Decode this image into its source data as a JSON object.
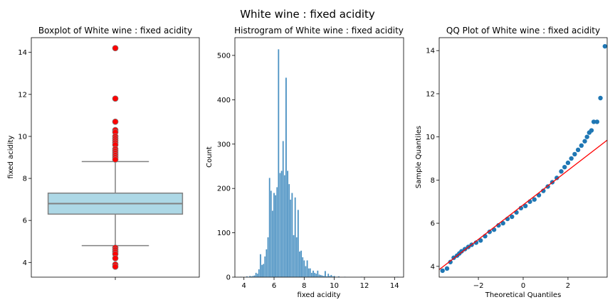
{
  "figure_title": "White wine : fixed acidity",
  "chart_data": [
    {
      "type": "box",
      "title": "Boxplot of White wine : fixed acidity",
      "xlabel": "",
      "ylabel": "fixed acidity",
      "ylim": [
        3.3,
        14.7
      ],
      "yticks": [
        4,
        6,
        8,
        10,
        12,
        14
      ],
      "box": {
        "q1": 6.3,
        "median": 6.8,
        "q3": 7.3,
        "whisker_low": 4.8,
        "whisker_high": 8.8,
        "fill": "#add8e6",
        "edge": "#808080"
      },
      "outliers": [
        14.2,
        11.8,
        10.7,
        10.3,
        10.2,
        10.0,
        9.9,
        9.8,
        9.7,
        9.6,
        9.4,
        9.3,
        9.2,
        9.1,
        9.0,
        8.9,
        4.7,
        4.6,
        4.5,
        4.4,
        4.2,
        3.9,
        3.8
      ],
      "outlier_color": "#ff0000"
    },
    {
      "type": "bar",
      "title": "Histrogram of White wine : fixed acidity",
      "xlabel": "fixed acidity",
      "ylabel": "Count",
      "xlim": [
        3.4,
        14.6
      ],
      "ylim": [
        0,
        540
      ],
      "xticks": [
        4,
        6,
        8,
        10,
        12,
        14
      ],
      "yticks": [
        0,
        100,
        200,
        300,
        400,
        500
      ],
      "bar_color": "#1f77b4",
      "bins": [
        {
          "x": 3.8,
          "v": 1
        },
        {
          "x": 4.2,
          "v": 2
        },
        {
          "x": 4.4,
          "v": 3
        },
        {
          "x": 4.5,
          "v": 2
        },
        {
          "x": 4.6,
          "v": 3
        },
        {
          "x": 4.7,
          "v": 4
        },
        {
          "x": 4.8,
          "v": 10
        },
        {
          "x": 4.9,
          "v": 8
        },
        {
          "x": 5.0,
          "v": 18
        },
        {
          "x": 5.1,
          "v": 52
        },
        {
          "x": 5.2,
          "v": 28
        },
        {
          "x": 5.3,
          "v": 30
        },
        {
          "x": 5.4,
          "v": 47
        },
        {
          "x": 5.5,
          "v": 63
        },
        {
          "x": 5.6,
          "v": 90
        },
        {
          "x": 5.7,
          "v": 224
        },
        {
          "x": 5.8,
          "v": 195
        },
        {
          "x": 5.9,
          "v": 150
        },
        {
          "x": 6.0,
          "v": 190
        },
        {
          "x": 6.1,
          "v": 185
        },
        {
          "x": 6.2,
          "v": 203
        },
        {
          "x": 6.3,
          "v": 514
        },
        {
          "x": 6.4,
          "v": 235
        },
        {
          "x": 6.5,
          "v": 240
        },
        {
          "x": 6.6,
          "v": 307
        },
        {
          "x": 6.7,
          "v": 230
        },
        {
          "x": 6.8,
          "v": 450
        },
        {
          "x": 6.9,
          "v": 240
        },
        {
          "x": 7.0,
          "v": 210
        },
        {
          "x": 7.1,
          "v": 175
        },
        {
          "x": 7.2,
          "v": 190
        },
        {
          "x": 7.3,
          "v": 95
        },
        {
          "x": 7.4,
          "v": 180
        },
        {
          "x": 7.5,
          "v": 90
        },
        {
          "x": 7.6,
          "v": 152
        },
        {
          "x": 7.7,
          "v": 58
        },
        {
          "x": 7.8,
          "v": 60
        },
        {
          "x": 7.9,
          "v": 45
        },
        {
          "x": 8.0,
          "v": 38
        },
        {
          "x": 8.1,
          "v": 25
        },
        {
          "x": 8.2,
          "v": 38
        },
        {
          "x": 8.3,
          "v": 20
        },
        {
          "x": 8.4,
          "v": 20
        },
        {
          "x": 8.5,
          "v": 10
        },
        {
          "x": 8.6,
          "v": 15
        },
        {
          "x": 8.7,
          "v": 10
        },
        {
          "x": 8.8,
          "v": 8
        },
        {
          "x": 8.9,
          "v": 15
        },
        {
          "x": 9.0,
          "v": 6
        },
        {
          "x": 9.1,
          "v": 5
        },
        {
          "x": 9.2,
          "v": 4
        },
        {
          "x": 9.3,
          "v": 3
        },
        {
          "x": 9.4,
          "v": 14
        },
        {
          "x": 9.5,
          "v": 2
        },
        {
          "x": 9.6,
          "v": 8
        },
        {
          "x": 9.7,
          "v": 3
        },
        {
          "x": 9.8,
          "v": 5
        },
        {
          "x": 9.9,
          "v": 2
        },
        {
          "x": 10.0,
          "v": 3
        },
        {
          "x": 10.2,
          "v": 1
        },
        {
          "x": 10.3,
          "v": 2
        },
        {
          "x": 10.7,
          "v": 1
        },
        {
          "x": 11.8,
          "v": 1
        },
        {
          "x": 14.2,
          "v": 1
        }
      ],
      "bin_width": 0.1
    },
    {
      "type": "scatter",
      "title": "QQ Plot of White wine : fixed acidity",
      "xlabel": "Theoretical Quantiles",
      "ylabel": "Sample Quantiles",
      "xlim": [
        -3.75,
        3.75
      ],
      "ylim": [
        3.5,
        14.6
      ],
      "xticks": [
        -2,
        0,
        2
      ],
      "yticks": [
        4,
        6,
        8,
        10,
        12,
        14
      ],
      "point_color": "#1f77b4",
      "line_color": "#ff0000",
      "ref_line": [
        [
          -3.75,
          3.85
        ],
        [
          3.75,
          9.85
        ]
      ],
      "points": [
        [
          -3.6,
          3.8
        ],
        [
          -3.4,
          3.9
        ],
        [
          -3.25,
          4.2
        ],
        [
          -3.1,
          4.4
        ],
        [
          -2.95,
          4.5
        ],
        [
          -2.85,
          4.6
        ],
        [
          -2.75,
          4.7
        ],
        [
          -2.6,
          4.8
        ],
        [
          -2.45,
          4.9
        ],
        [
          -2.3,
          5.0
        ],
        [
          -2.1,
          5.1
        ],
        [
          -1.9,
          5.2
        ],
        [
          -1.7,
          5.4
        ],
        [
          -1.5,
          5.6
        ],
        [
          -1.3,
          5.7
        ],
        [
          -1.1,
          5.9
        ],
        [
          -0.9,
          6.0
        ],
        [
          -0.7,
          6.2
        ],
        [
          -0.5,
          6.3
        ],
        [
          -0.3,
          6.5
        ],
        [
          -0.1,
          6.7
        ],
        [
          0.1,
          6.8
        ],
        [
          0.3,
          7.0
        ],
        [
          0.5,
          7.1
        ],
        [
          0.7,
          7.3
        ],
        [
          0.9,
          7.5
        ],
        [
          1.1,
          7.7
        ],
        [
          1.3,
          7.9
        ],
        [
          1.5,
          8.1
        ],
        [
          1.7,
          8.4
        ],
        [
          1.85,
          8.6
        ],
        [
          2.0,
          8.8
        ],
        [
          2.15,
          9.0
        ],
        [
          2.3,
          9.2
        ],
        [
          2.45,
          9.4
        ],
        [
          2.6,
          9.6
        ],
        [
          2.75,
          9.8
        ],
        [
          2.85,
          10.0
        ],
        [
          2.95,
          10.2
        ],
        [
          3.05,
          10.3
        ],
        [
          3.15,
          10.7
        ],
        [
          3.3,
          10.7
        ],
        [
          3.45,
          11.8
        ],
        [
          3.65,
          14.2
        ]
      ]
    }
  ]
}
